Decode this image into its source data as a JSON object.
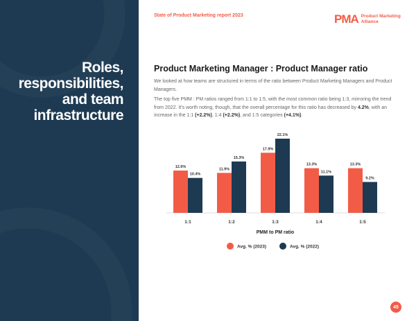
{
  "section_title": [
    "Roles,",
    "responsibilities,",
    "and team",
    "infrastructure"
  ],
  "header": {
    "report": "State of Product Marketing report 2023",
    "logo_mark": "PMA",
    "logo_text": [
      "Product Marketing",
      "Alliance"
    ]
  },
  "heading": "Product Marketing Manager : Product Manager ratio",
  "paragraph1": "We looked at how teams are structured in terms of the ratio between Product Marketing Managers and Product Managers.",
  "paragraph2": {
    "text": "The top five PMM : PM ratios ranged from 1:1 to 1:5, with the most common ratio being 1:3, mirroring the trend from 2022. It's worth noting, though, that the overall percentage for this ratio has decreased by ",
    "b1": "4.2%",
    "t2": ", with an increase in the 1:1 ",
    "b2": "(+2.2%)",
    "t3": ", 1:4 ",
    "b3": "(+2.2%)",
    "t4": ", and 1:5 categories ",
    "b4": "(+4.1%)",
    "t5": "."
  },
  "page_number": "45",
  "colors": {
    "navy": "#1d3a52",
    "accent": "#f25c47"
  },
  "chart_data": {
    "type": "bar",
    "xlabel": "PMM to PM ratio",
    "categories": [
      "1:1",
      "1:2",
      "1:3",
      "1:4",
      "1:5"
    ],
    "series": [
      {
        "name": "Avg. % (2023)",
        "color": "#f25c47",
        "values": [
          12.6,
          11.9,
          17.9,
          13.3,
          13.3
        ],
        "labels": [
          "12.6%",
          "11.9%",
          "17.9%",
          "13.3%",
          "13.3%"
        ]
      },
      {
        "name": "Avg. % (2022)",
        "color": "#1d3a52",
        "values": [
          10.4,
          15.3,
          22.1,
          11.1,
          9.2
        ],
        "labels": [
          "10.4%",
          "15.3%",
          "22.1%",
          "11.1%",
          "9.2%"
        ]
      }
    ],
    "ylim": [
      0,
      22.1
    ],
    "grid": false,
    "legend": "bottom"
  }
}
